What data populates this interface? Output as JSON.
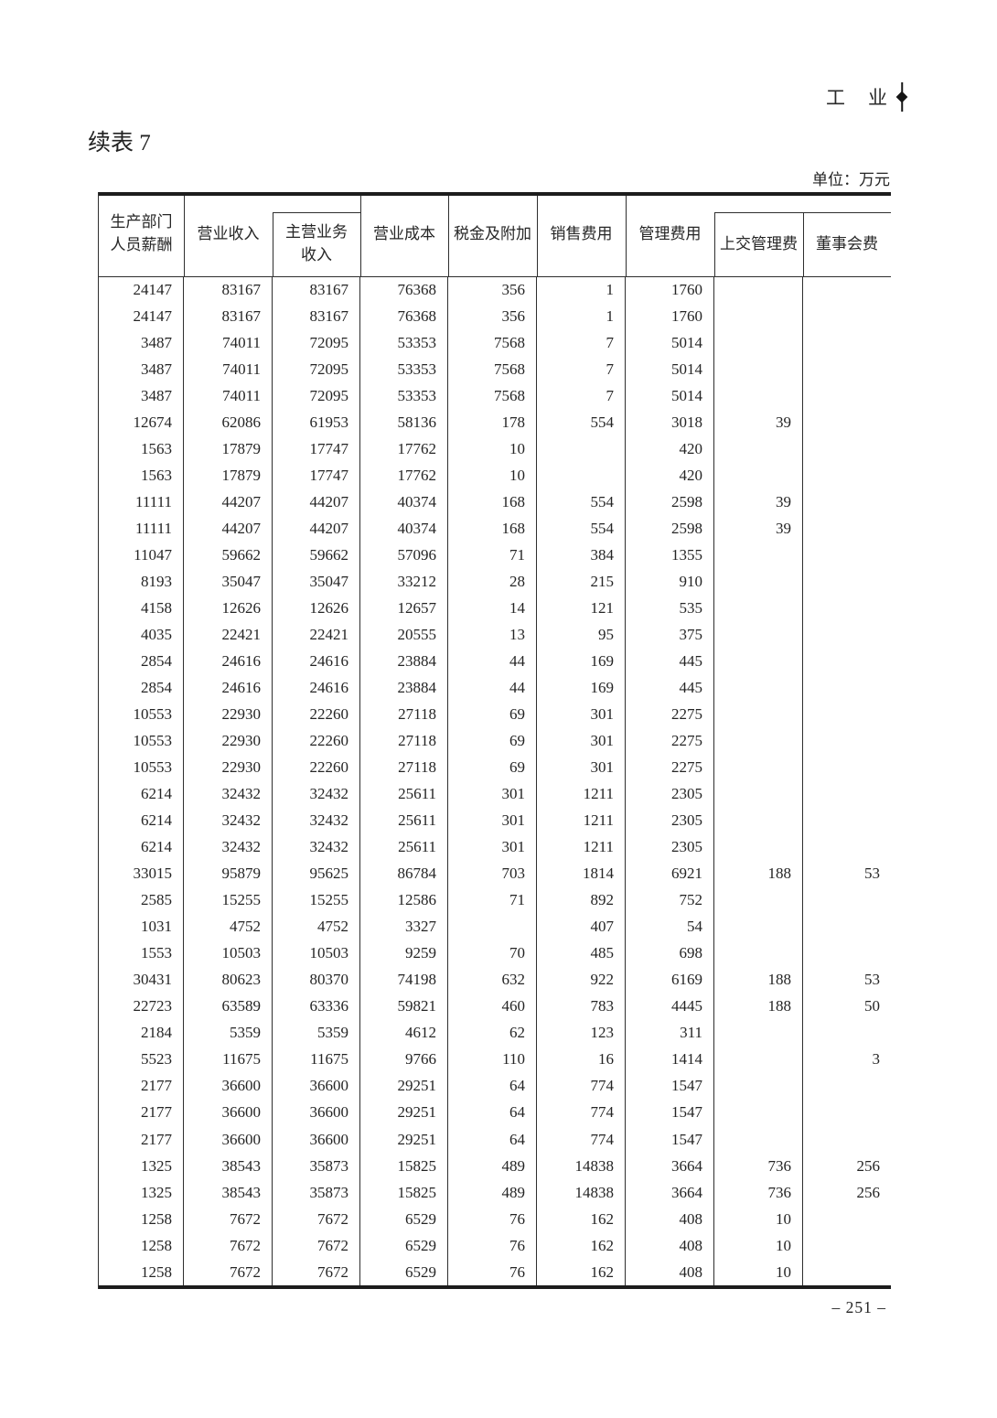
{
  "page": {
    "section_label": "工　业",
    "title": "续表 7",
    "unit_label": "单位：万元",
    "page_number": "– 251 –"
  },
  "table": {
    "headers": [
      "生产部门\n人员薪酬",
      "营业收入",
      "主营业务\n收入",
      "营业成本",
      "税金及附加",
      "销售费用",
      "管理费用",
      "上交管理费",
      "董事会费"
    ],
    "rows": [
      [
        "24147",
        "83167",
        "83167",
        "76368",
        "356",
        "1",
        "1760",
        "",
        ""
      ],
      [
        "24147",
        "83167",
        "83167",
        "76368",
        "356",
        "1",
        "1760",
        "",
        ""
      ],
      [
        "3487",
        "74011",
        "72095",
        "53353",
        "7568",
        "7",
        "5014",
        "",
        ""
      ],
      [
        "3487",
        "74011",
        "72095",
        "53353",
        "7568",
        "7",
        "5014",
        "",
        ""
      ],
      [
        "3487",
        "74011",
        "72095",
        "53353",
        "7568",
        "7",
        "5014",
        "",
        ""
      ],
      [
        "12674",
        "62086",
        "61953",
        "58136",
        "178",
        "554",
        "3018",
        "39",
        ""
      ],
      [
        "1563",
        "17879",
        "17747",
        "17762",
        "10",
        "",
        "420",
        "",
        ""
      ],
      [
        "1563",
        "17879",
        "17747",
        "17762",
        "10",
        "",
        "420",
        "",
        ""
      ],
      [
        "11111",
        "44207",
        "44207",
        "40374",
        "168",
        "554",
        "2598",
        "39",
        ""
      ],
      [
        "11111",
        "44207",
        "44207",
        "40374",
        "168",
        "554",
        "2598",
        "39",
        ""
      ],
      [
        "11047",
        "59662",
        "59662",
        "57096",
        "71",
        "384",
        "1355",
        "",
        ""
      ],
      [
        "8193",
        "35047",
        "35047",
        "33212",
        "28",
        "215",
        "910",
        "",
        ""
      ],
      [
        "4158",
        "12626",
        "12626",
        "12657",
        "14",
        "121",
        "535",
        "",
        ""
      ],
      [
        "4035",
        "22421",
        "22421",
        "20555",
        "13",
        "95",
        "375",
        "",
        ""
      ],
      [
        "2854",
        "24616",
        "24616",
        "23884",
        "44",
        "169",
        "445",
        "",
        ""
      ],
      [
        "2854",
        "24616",
        "24616",
        "23884",
        "44",
        "169",
        "445",
        "",
        ""
      ],
      [
        "10553",
        "22930",
        "22260",
        "27118",
        "69",
        "301",
        "2275",
        "",
        ""
      ],
      [
        "10553",
        "22930",
        "22260",
        "27118",
        "69",
        "301",
        "2275",
        "",
        ""
      ],
      [
        "10553",
        "22930",
        "22260",
        "27118",
        "69",
        "301",
        "2275",
        "",
        ""
      ],
      [
        "6214",
        "32432",
        "32432",
        "25611",
        "301",
        "1211",
        "2305",
        "",
        ""
      ],
      [
        "6214",
        "32432",
        "32432",
        "25611",
        "301",
        "1211",
        "2305",
        "",
        ""
      ],
      [
        "6214",
        "32432",
        "32432",
        "25611",
        "301",
        "1211",
        "2305",
        "",
        ""
      ],
      [
        "33015",
        "95879",
        "95625",
        "86784",
        "703",
        "1814",
        "6921",
        "188",
        "53"
      ],
      [
        "2585",
        "15255",
        "15255",
        "12586",
        "71",
        "892",
        "752",
        "",
        ""
      ],
      [
        "1031",
        "4752",
        "4752",
        "3327",
        "",
        "407",
        "54",
        "",
        ""
      ],
      [
        "1553",
        "10503",
        "10503",
        "9259",
        "70",
        "485",
        "698",
        "",
        ""
      ],
      [
        "30431",
        "80623",
        "80370",
        "74198",
        "632",
        "922",
        "6169",
        "188",
        "53"
      ],
      [
        "22723",
        "63589",
        "63336",
        "59821",
        "460",
        "783",
        "4445",
        "188",
        "50"
      ],
      [
        "2184",
        "5359",
        "5359",
        "4612",
        "62",
        "123",
        "311",
        "",
        ""
      ],
      [
        "5523",
        "11675",
        "11675",
        "9766",
        "110",
        "16",
        "1414",
        "",
        "3"
      ],
      [
        "2177",
        "36600",
        "36600",
        "29251",
        "64",
        "774",
        "1547",
        "",
        ""
      ],
      [
        "2177",
        "36600",
        "36600",
        "29251",
        "64",
        "774",
        "1547",
        "",
        ""
      ],
      [
        "2177",
        "36600",
        "36600",
        "29251",
        "64",
        "774",
        "1547",
        "",
        ""
      ],
      [
        "1325",
        "38543",
        "35873",
        "15825",
        "489",
        "14838",
        "3664",
        "736",
        "256"
      ],
      [
        "1325",
        "38543",
        "35873",
        "15825",
        "489",
        "14838",
        "3664",
        "736",
        "256"
      ],
      [
        "1258",
        "7672",
        "7672",
        "6529",
        "76",
        "162",
        "408",
        "10",
        ""
      ],
      [
        "1258",
        "7672",
        "7672",
        "6529",
        "76",
        "162",
        "408",
        "10",
        ""
      ],
      [
        "1258",
        "7672",
        "7672",
        "6529",
        "76",
        "162",
        "408",
        "10",
        ""
      ]
    ]
  }
}
